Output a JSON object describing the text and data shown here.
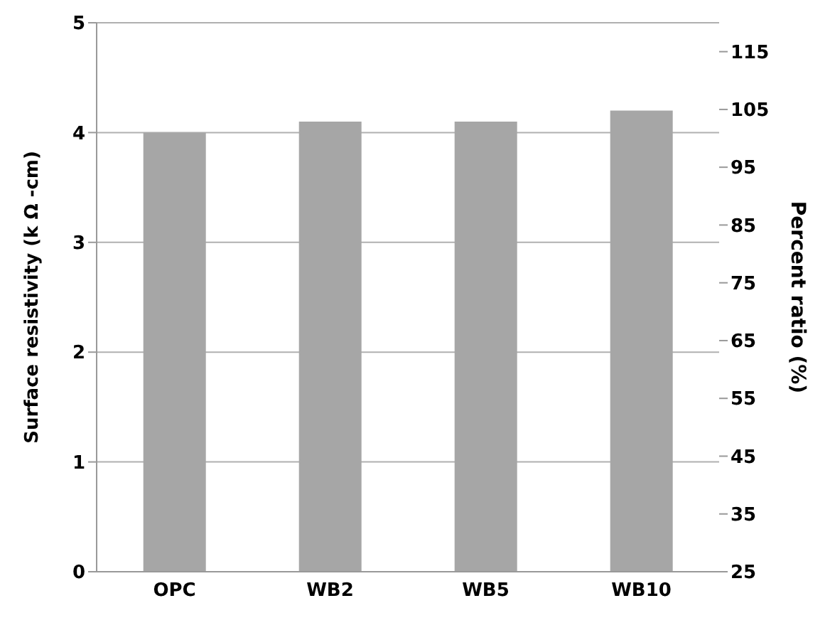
{
  "chart_data": {
    "type": "bar",
    "categories": [
      "OPC",
      "WB2",
      "WB5",
      "WB10"
    ],
    "series": [
      {
        "color": "#a6a6a6",
        "values": [
          4.0,
          4.1,
          4.1,
          4.2
        ]
      }
    ],
    "ylabel": "Surface resistivity (k Ω -cm)",
    "y2label": "Percent ratio (%)",
    "ylim": [
      0,
      5
    ],
    "yticks": [
      0,
      1,
      2,
      3,
      4,
      5
    ],
    "y2lim": [
      25,
      120
    ],
    "y2ticks": [
      25,
      35,
      45,
      55,
      65,
      75,
      85,
      95,
      105,
      115
    ],
    "grid": "y",
    "legend": false
  }
}
